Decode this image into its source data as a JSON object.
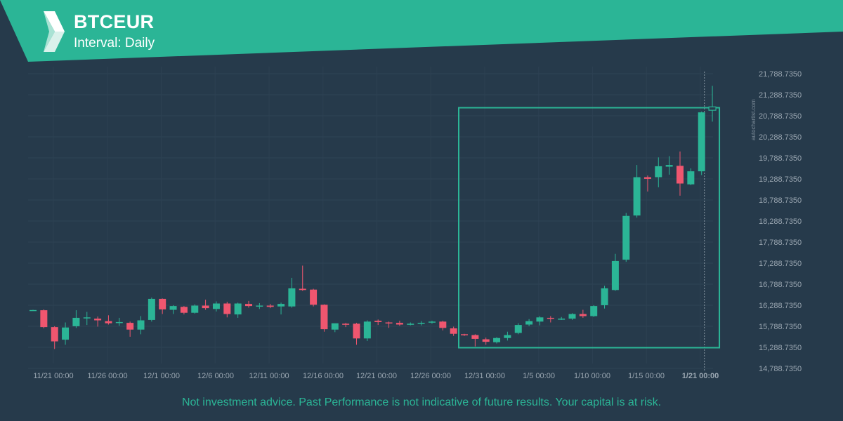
{
  "header": {
    "symbol": "BTCEUR",
    "interval": "Interval: Daily"
  },
  "watermark": "autochartist.com",
  "disclaimer": "Not investment advice. Past Performance is not indicative of future results. Your capital is at risk.",
  "colors": {
    "background": "#263a4b",
    "banner": "#2bb596",
    "bullish": "#2bb596",
    "bearish": "#f0566f",
    "pattern_box": "#2bb596",
    "axis_text": "#9aa6b1"
  },
  "chart_data": {
    "type": "candlestick",
    "title": "BTCEUR",
    "interval": "Daily",
    "x_tick_labels": [
      "11/21 00:00",
      "11/26 00:00",
      "12/1 00:00",
      "12/6 00:00",
      "12/11 00:00",
      "12/16 00:00",
      "12/21 00:00",
      "12/26 00:00",
      "12/31 00:00",
      "1/5 00:00",
      "1/10 00:00",
      "1/15 00:00",
      "1/21 00:00"
    ],
    "y_tick_labels": [
      "21,788.7350",
      "21,288.7350",
      "20,788.7350",
      "20,288.7350",
      "19,788.7350",
      "19,288.7350",
      "18,788.7350",
      "18,288.7350",
      "17,788.7350",
      "17,288.7350",
      "16,788.7350",
      "16,288.7350",
      "15,788.7350",
      "15,288.7350",
      "14,788.7350"
    ],
    "ylim": [
      14788.735,
      21788.735
    ],
    "grid": true,
    "candles": [
      {
        "o": 16170,
        "h": 16180,
        "l": 16160,
        "c": 16175
      },
      {
        "o": 16170,
        "h": 16190,
        "l": 15740,
        "c": 15770
      },
      {
        "o": 15770,
        "h": 15790,
        "l": 15250,
        "c": 15430
      },
      {
        "o": 15470,
        "h": 15880,
        "l": 15350,
        "c": 15760
      },
      {
        "o": 15790,
        "h": 16170,
        "l": 15750,
        "c": 15990
      },
      {
        "o": 15990,
        "h": 16130,
        "l": 15820,
        "c": 16000
      },
      {
        "o": 15970,
        "h": 16020,
        "l": 15780,
        "c": 15930
      },
      {
        "o": 15910,
        "h": 16050,
        "l": 15830,
        "c": 15860
      },
      {
        "o": 15880,
        "h": 15990,
        "l": 15800,
        "c": 15890
      },
      {
        "o": 15870,
        "h": 15900,
        "l": 15540,
        "c": 15710
      },
      {
        "o": 15710,
        "h": 16030,
        "l": 15600,
        "c": 15930
      },
      {
        "o": 15940,
        "h": 16470,
        "l": 15900,
        "c": 16440
      },
      {
        "o": 16440,
        "h": 16450,
        "l": 16080,
        "c": 16190
      },
      {
        "o": 16180,
        "h": 16290,
        "l": 16080,
        "c": 16270
      },
      {
        "o": 16250,
        "h": 16270,
        "l": 16070,
        "c": 16110
      },
      {
        "o": 16110,
        "h": 16310,
        "l": 16090,
        "c": 16280
      },
      {
        "o": 16280,
        "h": 16420,
        "l": 16180,
        "c": 16220
      },
      {
        "o": 16200,
        "h": 16380,
        "l": 16140,
        "c": 16330
      },
      {
        "o": 16330,
        "h": 16370,
        "l": 16000,
        "c": 16080
      },
      {
        "o": 16070,
        "h": 16350,
        "l": 15990,
        "c": 16330
      },
      {
        "o": 16320,
        "h": 16390,
        "l": 16230,
        "c": 16270
      },
      {
        "o": 16270,
        "h": 16340,
        "l": 16200,
        "c": 16280
      },
      {
        "o": 16280,
        "h": 16320,
        "l": 16220,
        "c": 16250
      },
      {
        "o": 16260,
        "h": 16350,
        "l": 16070,
        "c": 16320
      },
      {
        "o": 16260,
        "h": 16940,
        "l": 16230,
        "c": 16690
      },
      {
        "o": 16680,
        "h": 17230,
        "l": 16630,
        "c": 16650
      },
      {
        "o": 16660,
        "h": 16680,
        "l": 16260,
        "c": 16300
      },
      {
        "o": 16300,
        "h": 16310,
        "l": 15660,
        "c": 15720
      },
      {
        "o": 15710,
        "h": 15850,
        "l": 15650,
        "c": 15860
      },
      {
        "o": 15850,
        "h": 15870,
        "l": 15770,
        "c": 15840
      },
      {
        "o": 15850,
        "h": 15870,
        "l": 15350,
        "c": 15500
      },
      {
        "o": 15500,
        "h": 15930,
        "l": 15440,
        "c": 15900
      },
      {
        "o": 15920,
        "h": 15950,
        "l": 15820,
        "c": 15890
      },
      {
        "o": 15880,
        "h": 15900,
        "l": 15750,
        "c": 15870
      },
      {
        "o": 15870,
        "h": 15920,
        "l": 15800,
        "c": 15830
      },
      {
        "o": 15830,
        "h": 15880,
        "l": 15810,
        "c": 15850
      },
      {
        "o": 15850,
        "h": 15910,
        "l": 15810,
        "c": 15870
      },
      {
        "o": 15880,
        "h": 15920,
        "l": 15850,
        "c": 15900
      },
      {
        "o": 15900,
        "h": 15920,
        "l": 15690,
        "c": 15750
      },
      {
        "o": 15740,
        "h": 15780,
        "l": 15560,
        "c": 15610
      },
      {
        "o": 15600,
        "h": 15610,
        "l": 15560,
        "c": 15580
      },
      {
        "o": 15580,
        "h": 15600,
        "l": 15310,
        "c": 15490
      },
      {
        "o": 15480,
        "h": 15520,
        "l": 15350,
        "c": 15420
      },
      {
        "o": 15410,
        "h": 15530,
        "l": 15380,
        "c": 15510
      },
      {
        "o": 15510,
        "h": 15660,
        "l": 15450,
        "c": 15580
      },
      {
        "o": 15630,
        "h": 15860,
        "l": 15600,
        "c": 15820
      },
      {
        "o": 15830,
        "h": 15960,
        "l": 15790,
        "c": 15910
      },
      {
        "o": 15900,
        "h": 16030,
        "l": 15810,
        "c": 16000
      },
      {
        "o": 15990,
        "h": 16030,
        "l": 15880,
        "c": 15970
      },
      {
        "o": 15960,
        "h": 16010,
        "l": 15940,
        "c": 15970
      },
      {
        "o": 15970,
        "h": 16100,
        "l": 15940,
        "c": 16080
      },
      {
        "o": 16080,
        "h": 16180,
        "l": 15990,
        "c": 16030
      },
      {
        "o": 16030,
        "h": 16290,
        "l": 16010,
        "c": 16270
      },
      {
        "o": 16290,
        "h": 16750,
        "l": 16210,
        "c": 16690
      },
      {
        "o": 16650,
        "h": 17510,
        "l": 16630,
        "c": 17340
      },
      {
        "o": 17370,
        "h": 18480,
        "l": 17320,
        "c": 18410
      },
      {
        "o": 18420,
        "h": 19620,
        "l": 18370,
        "c": 19330
      },
      {
        "o": 19330,
        "h": 19370,
        "l": 18990,
        "c": 19290
      },
      {
        "o": 19330,
        "h": 19800,
        "l": 19090,
        "c": 19590
      },
      {
        "o": 19580,
        "h": 19830,
        "l": 19390,
        "c": 19620
      },
      {
        "o": 19600,
        "h": 19940,
        "l": 18890,
        "c": 19180
      },
      {
        "o": 19160,
        "h": 19540,
        "l": 19140,
        "c": 19470
      },
      {
        "o": 19470,
        "h": 20890,
        "l": 19380,
        "c": 20870
      },
      {
        "o": 20920,
        "h": 21500,
        "l": 20650,
        "c": 21000
      }
    ],
    "pattern_box": {
      "start_index": 40,
      "end_index": 63,
      "top": 20980,
      "bottom": 15280
    },
    "current_time_index": 62
  }
}
